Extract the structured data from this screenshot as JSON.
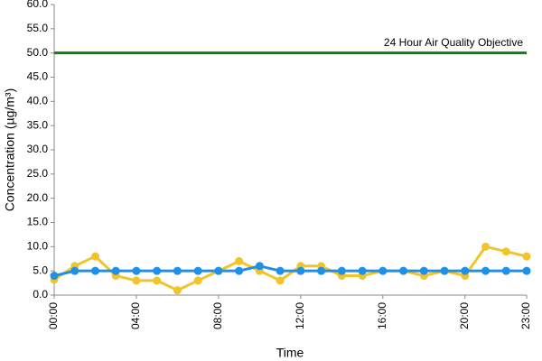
{
  "chart_data": {
    "type": "line",
    "x_label": "Time",
    "y_label": "Concentration (µg/m³)",
    "categories": [
      "00:00",
      null,
      null,
      null,
      "04:00",
      null,
      null,
      null,
      "08:00",
      null,
      null,
      null,
      "12:00",
      null,
      null,
      null,
      "16:00",
      null,
      null,
      null,
      "20:00",
      null,
      null,
      "23:00"
    ],
    "series": [
      {
        "color": "#f2c42c",
        "values": [
          3.2,
          6,
          8,
          4,
          3,
          3,
          1,
          3,
          5,
          7,
          5,
          3,
          6,
          6,
          4,
          4,
          5,
          5,
          4,
          5,
          4,
          10,
          9,
          8
        ]
      },
      {
        "color": "#1e90e8",
        "values": [
          4,
          5,
          5,
          5,
          5,
          5,
          5,
          5,
          5,
          5,
          6,
          5,
          5,
          5,
          5,
          5,
          5,
          5,
          5,
          5,
          5,
          5,
          5,
          5
        ]
      }
    ],
    "objective": {
      "value": 50,
      "label": "24 Hour Air Quality Objective",
      "color": "#1a7a1a"
    },
    "ylim": [
      0,
      60
    ],
    "yticks": [
      {
        "value": 0,
        "label": "0.0"
      },
      {
        "value": 5,
        "label": "5.0"
      },
      {
        "value": 10,
        "label": "10.0"
      },
      {
        "value": 15,
        "label": "15.0"
      },
      {
        "value": 20,
        "label": "20.0"
      },
      {
        "value": 25,
        "label": "25.0"
      },
      {
        "value": 30,
        "label": "30.0"
      },
      {
        "value": 35,
        "label": "35.0"
      },
      {
        "value": 40,
        "label": "40.0"
      },
      {
        "value": 45,
        "label": "45.0"
      },
      {
        "value": 50,
        "label": "50.0"
      },
      {
        "value": 55,
        "label": "55.0"
      },
      {
        "value": 60,
        "label": "60.0"
      }
    ]
  }
}
